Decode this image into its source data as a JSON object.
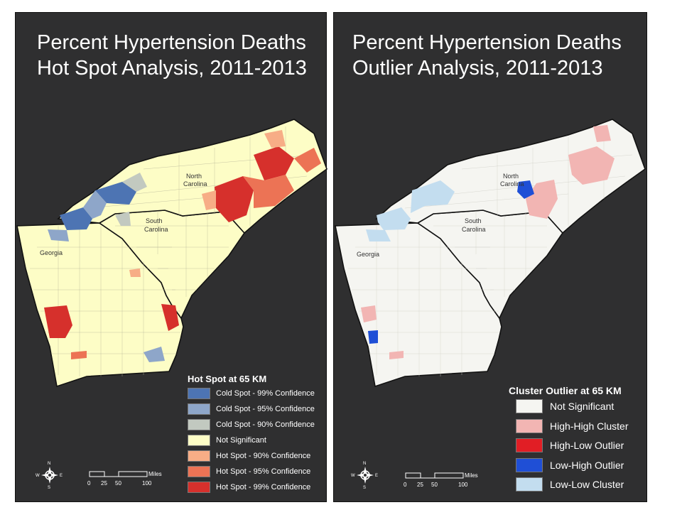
{
  "left_panel": {
    "title_line1": "Percent Hypertension Deaths",
    "title_line2": "Hot Spot Analysis, 2011-2013",
    "legend_title": "Hot Spot at 65 KM",
    "legend": [
      {
        "label": "Cold Spot - 99% Confidence",
        "color": "#4d74b3"
      },
      {
        "label": "Cold Spot - 95% Confidence",
        "color": "#8ea6c9"
      },
      {
        "label": "Cold Spot - 90% Confidence",
        "color": "#c2c9c0"
      },
      {
        "label": "Not Significant",
        "color": "#fdfdc6"
      },
      {
        "label": "Hot Spot - 90% Confidence",
        "color": "#f7ad86"
      },
      {
        "label": "Hot Spot - 95% Confidence",
        "color": "#ec7355"
      },
      {
        "label": "Hot Spot - 99% Confidence",
        "color": "#d6302c"
      }
    ],
    "state_labels": {
      "nc_line1": "North",
      "nc_line2": "Carolina",
      "sc_line1": "South",
      "sc_line2": "Carolina",
      "ga": "Georgia"
    }
  },
  "right_panel": {
    "title_line1": "Percent Hypertension Deaths",
    "title_line2": "Outlier Analysis, 2011-2013",
    "legend_title": "Cluster Outlier at 65 KM",
    "legend": [
      {
        "label": "Not Significant",
        "color": "#f5f5f1"
      },
      {
        "label": "High-High Cluster",
        "color": "#f2b5b3"
      },
      {
        "label": "High-Low Outlier",
        "color": "#e11e25"
      },
      {
        "label": "Low-High Outlier",
        "color": "#1f4fd6"
      },
      {
        "label": "Low-Low Cluster",
        "color": "#c3ddef"
      }
    ],
    "state_labels": {
      "nc_line1": "North",
      "nc_line2": "Carolina",
      "sc_line1": "South",
      "sc_line2": "Carolina",
      "ga": "Georgia"
    }
  },
  "compass": {
    "n": "N",
    "s": "S",
    "e": "E",
    "w": "W"
  },
  "scale": {
    "unit": "Miles",
    "ticks": [
      "0",
      "25",
      "50",
      "100"
    ]
  },
  "colors": {
    "panel_bg": "#2f2f30",
    "outline": "#111111"
  }
}
